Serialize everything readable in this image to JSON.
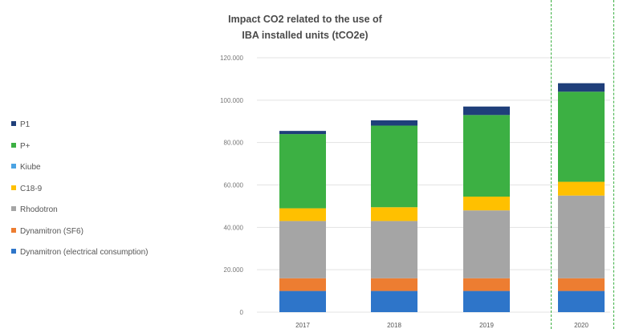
{
  "chart_data": {
    "type": "bar",
    "stacked": true,
    "title_lines": [
      "Impact CO2 related to the use of",
      "IBA installed units (tCO2e)"
    ],
    "categories": [
      "2017",
      "2018",
      "2019",
      "2020"
    ],
    "ylim": [
      0,
      120000
    ],
    "yticks": [
      "0",
      "20.000",
      "40.000",
      "60.000",
      "80.000",
      "100.000",
      "120.000"
    ],
    "ytick_values": [
      0,
      20000,
      40000,
      60000,
      80000,
      100000,
      120000
    ],
    "grid": true,
    "legend_position": "left",
    "series": [
      {
        "name": "Dynamitron (electrical consumption)",
        "color": "#2e75c9",
        "values": [
          10000,
          10000,
          10000,
          10000
        ]
      },
      {
        "name": "Dynamitron (SF6)",
        "color": "#ed7d31",
        "values": [
          6000,
          6000,
          6000,
          6000
        ]
      },
      {
        "name": "Rhodotron",
        "color": "#a5a5a5",
        "values": [
          27000,
          27000,
          32000,
          39000
        ]
      },
      {
        "name": "C18-9",
        "color": "#ffc000",
        "values": [
          6000,
          6500,
          6500,
          6500
        ]
      },
      {
        "name": "Kiube",
        "color": "#4ba3e3",
        "values": [
          0,
          0,
          0,
          0
        ]
      },
      {
        "name": "P+",
        "color": "#3cb043",
        "values": [
          35000,
          38500,
          38500,
          42500
        ]
      },
      {
        "name": "P1",
        "color": "#1f3f7a",
        "values": [
          1500,
          2500,
          4000,
          4000
        ]
      }
    ]
  }
}
